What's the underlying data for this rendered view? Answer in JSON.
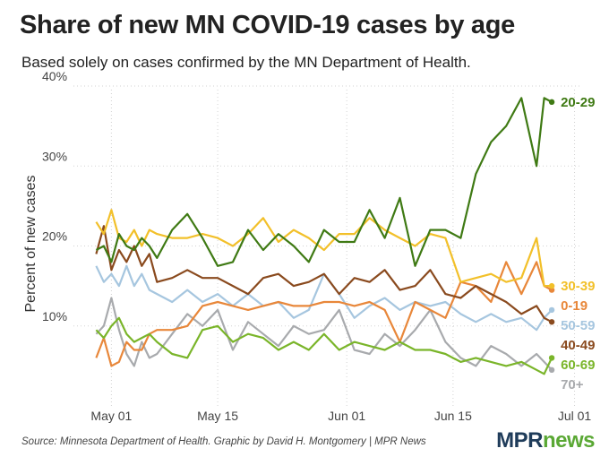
{
  "title": "Share of new MN COVID-19 cases by age",
  "subtitle": "Based solely on cases confirmed by the MN Department of Health.",
  "source": "Source: Minnesota Department of Health. Graphic by David H. Montgomery | MPR News",
  "logo": {
    "mpr": "MPR",
    "news": "news"
  },
  "chart_data": {
    "type": "line",
    "ylabel": "Percent of new cases",
    "xlabel": "",
    "ylim": [
      0,
      40
    ],
    "xlim": [
      "2020-04-26",
      "2020-07-02"
    ],
    "x_ticks": [
      {
        "date": "2020-05-01",
        "label": "May 01"
      },
      {
        "date": "2020-05-15",
        "label": "May 15"
      },
      {
        "date": "2020-06-01",
        "label": "Jun 01"
      },
      {
        "date": "2020-06-15",
        "label": "Jun 15"
      },
      {
        "date": "2020-07-01",
        "label": "Jul 01"
      }
    ],
    "y_ticks": [
      {
        "value": 10,
        "label": "10%"
      },
      {
        "value": 20,
        "label": "20%"
      },
      {
        "value": 30,
        "label": "30%"
      },
      {
        "value": 40,
        "label": "40%"
      }
    ],
    "x": [
      "2020-04-29",
      "2020-04-30",
      "2020-05-01",
      "2020-05-02",
      "2020-05-03",
      "2020-05-04",
      "2020-05-05",
      "2020-05-06",
      "2020-05-07",
      "2020-05-09",
      "2020-05-11",
      "2020-05-13",
      "2020-05-15",
      "2020-05-17",
      "2020-05-19",
      "2020-05-21",
      "2020-05-23",
      "2020-05-25",
      "2020-05-27",
      "2020-05-29",
      "2020-05-31",
      "2020-06-02",
      "2020-06-04",
      "2020-06-06",
      "2020-06-08",
      "2020-06-10",
      "2020-06-12",
      "2020-06-14",
      "2020-06-16",
      "2020-06-18",
      "2020-06-20",
      "2020-06-22",
      "2020-06-24",
      "2020-06-26",
      "2020-06-27",
      "2020-06-28"
    ],
    "series": [
      {
        "name": "20-29",
        "color": "#3f7a14",
        "values": [
          19.5,
          20,
          18,
          21.5,
          20,
          19.5,
          21,
          20,
          18.5,
          22,
          24,
          21,
          17.5,
          18,
          22,
          19.5,
          21.5,
          20,
          18,
          22,
          20.5,
          20.5,
          24.5,
          21,
          26,
          17.5,
          22,
          22,
          21,
          29,
          33,
          35,
          38.5,
          30,
          38.5,
          38
        ]
      },
      {
        "name": "30-39",
        "color": "#f2c02a",
        "values": [
          23,
          21.5,
          24.5,
          21,
          20.5,
          22,
          20,
          22,
          21.5,
          21,
          21,
          21.5,
          21,
          20,
          21.5,
          23.5,
          20.5,
          22,
          21,
          19.5,
          21.5,
          21.5,
          23.5,
          22,
          21,
          20,
          21.5,
          21,
          15.5,
          16,
          16.5,
          15.5,
          16,
          21,
          15,
          15
        ]
      },
      {
        "name": "0-19",
        "color": "#e8873a",
        "values": [
          6,
          8.5,
          5,
          5.5,
          8,
          7,
          7,
          9,
          9.5,
          9.5,
          10,
          12.5,
          13,
          12.5,
          12,
          12.5,
          13,
          12.5,
          12.5,
          13,
          13,
          12.5,
          13,
          12,
          8,
          13,
          12,
          11,
          15.5,
          15,
          13,
          18,
          14,
          18,
          15,
          14.5
        ]
      },
      {
        "name": "50-59",
        "color": "#a6c6df",
        "values": [
          17.5,
          15.5,
          16.5,
          15,
          17.5,
          15,
          16.5,
          14.5,
          14,
          13,
          14.5,
          13,
          14,
          12.5,
          14,
          12.5,
          13,
          11,
          12,
          16.5,
          14,
          11,
          12.5,
          13.5,
          12,
          13,
          12.5,
          13,
          11.5,
          10.5,
          11.5,
          10.5,
          11,
          9.5,
          11,
          12
        ]
      },
      {
        "name": "40-49",
        "color": "#8a4a1e",
        "values": [
          19,
          22.5,
          17,
          19.5,
          18,
          20,
          17.5,
          19,
          15.5,
          16,
          17,
          16,
          16,
          15,
          14,
          16,
          16.5,
          15,
          15.5,
          16.5,
          14,
          16,
          15.5,
          17,
          14.5,
          15,
          17,
          14,
          13.5,
          15,
          14,
          13,
          11.5,
          12.5,
          11,
          10.5
        ]
      },
      {
        "name": "60-69",
        "color": "#7ab52a",
        "values": [
          9.5,
          8.5,
          10,
          11,
          9,
          8,
          8.5,
          9,
          8,
          6.5,
          6,
          9.5,
          10,
          8,
          9,
          8.5,
          7,
          8,
          7,
          9,
          7,
          8,
          7.5,
          7,
          8,
          7,
          7,
          6.5,
          5.5,
          6,
          5.5,
          5,
          5.5,
          4.5,
          4,
          6
        ]
      },
      {
        "name": "70+",
        "color": "#a8aaad",
        "values": [
          9,
          10,
          13.5,
          9.5,
          6.5,
          5,
          8,
          6,
          6.5,
          9,
          11.5,
          10,
          12,
          7,
          10.5,
          9,
          7.5,
          10,
          9,
          9.5,
          12,
          7,
          6.5,
          9,
          7.5,
          9.5,
          12,
          8,
          6,
          5,
          7.5,
          6.5,
          5,
          6.5,
          5.5,
          4.5
        ]
      }
    ]
  }
}
